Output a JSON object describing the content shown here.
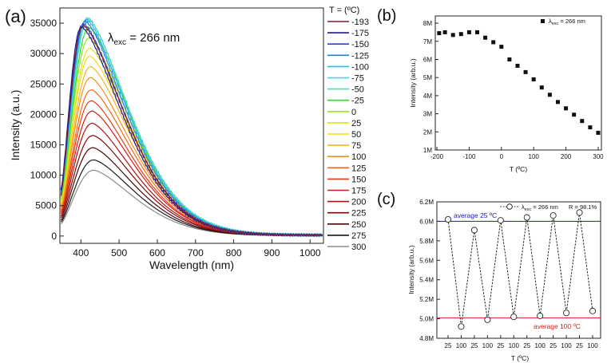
{
  "panel_labels": {
    "a": "(a)",
    "b": "(b)",
    "c": "(c)"
  },
  "chart_data": [
    {
      "panel": "a",
      "type": "line",
      "annotation": "λexc = 266 nm",
      "annotation_main": "λ",
      "annotation_sub": "exc",
      "annotation_tail": " = 266 nm",
      "xlabel": "Wavelength (nm)",
      "ylabel": "Intensity (a.u.)",
      "xlim": [
        345,
        1035
      ],
      "ylim": [
        -1200,
        37500
      ],
      "xticks": [
        "400",
        "500",
        "600",
        "700",
        "800",
        "900",
        "1000"
      ],
      "xtick_values": [
        400,
        500,
        600,
        700,
        800,
        900,
        1000
      ],
      "yticks": [
        "0",
        "5000",
        "10000",
        "15000",
        "20000",
        "25000",
        "30000",
        "35000"
      ],
      "ytick_values": [
        0,
        5000,
        10000,
        15000,
        20000,
        25000,
        30000,
        35000
      ],
      "legend_title": "T = (ºC)",
      "series": [
        {
          "name": "-193",
          "color": "#7a1f3a",
          "peak_nm": 405,
          "peak": 34500,
          "start": 6800
        },
        {
          "name": "-175",
          "color": "#1a1a8c",
          "peak_nm": 400,
          "peak": 34300,
          "start": 7500
        },
        {
          "name": "-150",
          "color": "#2742c9",
          "peak_nm": 405,
          "peak": 34800,
          "start": 7600
        },
        {
          "name": "-125",
          "color": "#2a7fd8",
          "peak_nm": 410,
          "peak": 35200,
          "start": 7400
        },
        {
          "name": "-100",
          "color": "#35b4e8",
          "peak_nm": 413,
          "peak": 35500,
          "start": 7200
        },
        {
          "name": "-75",
          "color": "#40d8d0",
          "peak_nm": 416,
          "peak": 35800,
          "start": 7000
        },
        {
          "name": "-50",
          "color": "#3ee8a8",
          "peak_nm": 418,
          "peak": 35500,
          "start": 6800
        },
        {
          "name": "-25",
          "color": "#33d633",
          "peak_nm": 420,
          "peak": 34200,
          "start": 6500
        },
        {
          "name": "0",
          "color": "#9be22a",
          "peak_nm": 420,
          "peak": 32500,
          "start": 6000
        },
        {
          "name": "25",
          "color": "#d8e61e",
          "peak_nm": 422,
          "peak": 30800,
          "start": 5600
        },
        {
          "name": "50",
          "color": "#f5d91e",
          "peak_nm": 422,
          "peak": 29500,
          "start": 5300
        },
        {
          "name": "75",
          "color": "#f7b51b",
          "peak_nm": 424,
          "peak": 27800,
          "start": 5000
        },
        {
          "name": "100",
          "color": "#f58f18",
          "peak_nm": 424,
          "peak": 26000,
          "start": 4700
        },
        {
          "name": "125",
          "color": "#f06a16",
          "peak_nm": 426,
          "peak": 24000,
          "start": 4300
        },
        {
          "name": "150",
          "color": "#e63c14",
          "peak_nm": 426,
          "peak": 22200,
          "start": 4000
        },
        {
          "name": "175",
          "color": "#d41c12",
          "peak_nm": 428,
          "peak": 20500,
          "start": 3700
        },
        {
          "name": "200",
          "color": "#b0100e",
          "peak_nm": 428,
          "peak": 18500,
          "start": 3300
        },
        {
          "name": "225",
          "color": "#7f0a0a",
          "peak_nm": 430,
          "peak": 16500,
          "start": 3000
        },
        {
          "name": "250",
          "color": "#4a0505",
          "peak_nm": 430,
          "peak": 14500,
          "start": 2600
        },
        {
          "name": "275",
          "color": "#1a1a1a",
          "peak_nm": 432,
          "peak": 12500,
          "start": 2300
        },
        {
          "name": "300",
          "color": "#8c8c8c",
          "peak_nm": 432,
          "peak": 10800,
          "start": 2000
        }
      ]
    },
    {
      "panel": "b",
      "type": "scatter",
      "legend": "λexc = 266 nm",
      "legend_main": "λ",
      "legend_sub": "exc",
      "legend_tail": " = 266 nm",
      "xlabel": "T (ºC)",
      "ylabel": "Intensity (arb.u.)",
      "xlim": [
        -205,
        310
      ],
      "ylim": [
        1000000,
        8400000
      ],
      "xticks": [
        "-200",
        "-100",
        "0",
        "100",
        "200",
        "300"
      ],
      "xtick_values": [
        -200,
        -100,
        0,
        100,
        200,
        300
      ],
      "yticks": [
        "1M",
        "2M",
        "3M",
        "4M",
        "5M",
        "6M",
        "7M",
        "8M"
      ],
      "ytick_values": [
        1000000,
        2000000,
        3000000,
        4000000,
        5000000,
        6000000,
        7000000,
        8000000
      ],
      "x": [
        -193,
        -175,
        -150,
        -125,
        -100,
        -75,
        -50,
        -25,
        0,
        25,
        50,
        75,
        100,
        125,
        150,
        175,
        200,
        225,
        250,
        275,
        300
      ],
      "y": [
        7450000,
        7500000,
        7350000,
        7400000,
        7500000,
        7500000,
        7200000,
        6950000,
        6700000,
        6000000,
        5650000,
        5300000,
        4900000,
        4450000,
        4050000,
        3650000,
        3300000,
        2950000,
        2600000,
        2250000,
        1950000
      ]
    },
    {
      "panel": "c",
      "type": "line",
      "legend": "λexc = 266 nm",
      "legend_main": "λ",
      "legend_sub": "exc",
      "legend_tail": " = 266 nm",
      "r_label": "R = 98.1%",
      "xlabel": "T (ºC)",
      "ylabel": "Intensity (arb.u.)",
      "ylim": [
        4800000,
        6200000
      ],
      "yticks": [
        "4.8M",
        "5.0M",
        "5.2M",
        "5.4M",
        "5.6M",
        "5.8M",
        "6.0M",
        "6.2M"
      ],
      "ytick_values": [
        4800000,
        5000000,
        5200000,
        5400000,
        5600000,
        5800000,
        6000000,
        6200000
      ],
      "categories": [
        "25",
        "100",
        "25",
        "100",
        "25",
        "100",
        "25",
        "100",
        "25",
        "100",
        "25",
        "100"
      ],
      "values": [
        6020000,
        4920000,
        5910000,
        4990000,
        6010000,
        5020000,
        6040000,
        5030000,
        6060000,
        5060000,
        6090000,
        5080000
      ],
      "average_high": {
        "label": "average 25 ºC",
        "value": 6000000,
        "color": "#1a1aa8"
      },
      "average_low": {
        "label": "average 100 ºC",
        "value": 5010000,
        "color": "#d41c1c"
      }
    }
  ]
}
